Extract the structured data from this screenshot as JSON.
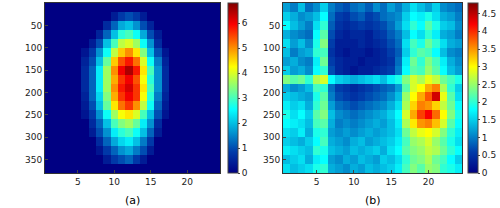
{
  "chart_data": [
    {
      "type": "heatmap",
      "label": "(a)",
      "x": [
        1,
        2,
        3,
        4,
        5,
        6,
        7,
        8,
        9,
        10,
        11,
        12,
        13,
        14,
        15,
        16,
        17,
        18,
        19,
        20,
        21,
        22,
        23,
        24
      ],
      "y": [
        10,
        30,
        50,
        70,
        90,
        110,
        130,
        150,
        170,
        190,
        210,
        230,
        250,
        270,
        290,
        310,
        330,
        350,
        370
      ],
      "xlim": [
        0.5,
        24.5
      ],
      "ylim": [
        0,
        380
      ],
      "xticks": [
        5,
        10,
        15,
        20
      ],
      "yticks": [
        50,
        100,
        150,
        200,
        250,
        300,
        350
      ],
      "zlim": [
        0,
        6.8
      ],
      "zticks": [
        0,
        1,
        2,
        3,
        4,
        5,
        6
      ],
      "grid": false,
      "cells": [
        [
          0,
          0,
          0,
          0,
          0,
          0,
          0,
          0,
          0,
          0,
          0,
          0,
          0,
          0,
          0,
          0,
          0,
          0,
          0,
          0,
          0,
          0,
          0,
          0
        ],
        [
          0,
          0,
          0,
          0,
          0,
          0,
          0,
          0,
          0,
          0.4,
          0.8,
          1,
          0.8,
          0.4,
          0,
          0,
          0,
          0,
          0,
          0,
          0,
          0,
          0,
          0
        ],
        [
          0,
          0,
          0,
          0,
          0,
          0,
          0,
          0,
          0.6,
          1.2,
          1.8,
          2,
          1.6,
          1,
          0.5,
          0,
          0,
          0,
          0,
          0,
          0,
          0,
          0,
          0
        ],
        [
          0,
          0,
          0,
          0,
          0,
          0,
          0,
          0.5,
          1.2,
          2,
          2.8,
          3,
          2.6,
          1.8,
          1,
          0.4,
          0,
          0,
          0,
          0,
          0,
          0,
          0,
          0
        ],
        [
          0,
          0,
          0,
          0,
          0,
          0,
          0.4,
          1,
          2,
          3,
          3.8,
          4,
          3.6,
          2.6,
          1.6,
          0.6,
          0,
          0,
          0,
          0,
          0,
          0,
          0,
          0
        ],
        [
          0,
          0,
          0,
          0,
          0,
          0.3,
          0.8,
          1.6,
          2.6,
          3.8,
          4.6,
          5,
          4.4,
          3.4,
          2,
          1,
          0.3,
          0,
          0,
          0,
          0,
          0,
          0,
          0
        ],
        [
          0,
          0,
          0,
          0,
          0,
          0.5,
          1,
          2,
          3.2,
          4.6,
          5.4,
          5.8,
          5.2,
          4,
          2.6,
          1.4,
          0.5,
          0,
          0,
          0,
          0,
          0,
          0,
          0
        ],
        [
          0,
          0,
          0,
          0,
          0,
          0.6,
          1.2,
          2.4,
          3.6,
          5,
          6,
          6.5,
          5.8,
          4.4,
          3,
          1.6,
          0.6,
          0,
          0,
          0,
          0,
          0,
          0,
          0
        ],
        [
          0,
          0,
          0,
          0,
          0,
          0.6,
          1.2,
          2.4,
          3.6,
          4.8,
          5.6,
          6,
          5.4,
          4.2,
          2.8,
          1.6,
          0.6,
          0,
          0,
          0,
          0,
          0,
          0,
          0
        ],
        [
          0,
          0,
          0,
          0,
          0,
          0.6,
          1.2,
          2.4,
          3.6,
          5,
          5.8,
          6.2,
          5.6,
          4.4,
          3,
          1.6,
          0.6,
          0,
          0,
          0,
          0,
          0,
          0,
          0
        ],
        [
          0,
          0,
          0,
          0,
          0,
          0.5,
          1.2,
          2.2,
          3.4,
          4.8,
          5.6,
          6,
          5.6,
          4.2,
          2.8,
          1.4,
          0.5,
          0,
          0,
          0,
          0,
          0,
          0,
          0
        ],
        [
          0,
          0,
          0,
          0,
          0,
          0.4,
          1,
          2,
          3.2,
          4.4,
          5.2,
          5.6,
          5,
          3.8,
          2.6,
          1.2,
          0.4,
          0,
          0,
          0,
          0,
          0,
          0,
          0
        ],
        [
          0,
          0,
          0,
          0,
          0,
          0.3,
          0.8,
          1.6,
          2.6,
          3.6,
          4.2,
          4.4,
          4,
          3,
          2,
          1,
          0.3,
          0,
          0,
          0,
          0,
          0,
          0,
          0
        ],
        [
          0,
          0,
          0,
          0,
          0,
          0,
          0.6,
          1.2,
          2,
          3,
          3.4,
          3.6,
          3.2,
          2.4,
          1.6,
          0.6,
          0,
          0,
          0,
          0,
          0,
          0,
          0,
          0
        ],
        [
          0,
          0,
          0,
          0,
          0,
          0,
          0.4,
          1,
          1.6,
          2.4,
          2.8,
          3,
          2.6,
          2,
          1.2,
          0.4,
          0,
          0,
          0,
          0,
          0,
          0,
          0,
          0
        ],
        [
          0,
          0,
          0,
          0,
          0,
          0,
          0,
          0.6,
          1.2,
          1.8,
          2.2,
          2.4,
          2,
          1.4,
          0.8,
          0,
          0,
          0,
          0,
          0,
          0,
          0,
          0,
          0
        ],
        [
          0,
          0,
          0,
          0,
          0,
          0,
          0,
          0.3,
          0.8,
          1.2,
          1.6,
          1.8,
          1.4,
          1,
          0.4,
          0,
          0,
          0,
          0,
          0,
          0,
          0,
          0,
          0
        ],
        [
          0,
          0,
          0,
          0,
          0,
          0,
          0,
          0,
          0.4,
          0.8,
          1,
          1.2,
          0.8,
          0.4,
          0,
          0,
          0,
          0,
          0,
          0,
          0,
          0,
          0,
          0
        ],
        [
          0,
          0,
          0,
          0,
          0,
          0,
          0,
          0,
          0,
          0,
          0,
          0,
          0,
          0,
          0,
          0,
          0,
          0,
          0,
          0,
          0,
          0,
          0,
          0
        ]
      ]
    },
    {
      "type": "heatmap",
      "label": "(b)",
      "x": [
        1,
        2,
        3,
        4,
        5,
        6,
        7,
        8,
        9,
        10,
        11,
        12,
        13,
        14,
        15,
        16,
        17,
        18,
        19,
        20,
        21,
        22,
        23,
        24
      ],
      "y": [
        10,
        30,
        50,
        70,
        90,
        110,
        130,
        150,
        170,
        190,
        210,
        230,
        250,
        270,
        290,
        310,
        330,
        350,
        370
      ],
      "xlim": [
        0.5,
        24.5
      ],
      "ylim": [
        0,
        380
      ],
      "xticks": [
        5,
        10,
        15,
        20
      ],
      "yticks": [
        50,
        100,
        150,
        200,
        250,
        300,
        350
      ],
      "zlim": [
        0,
        4.8
      ],
      "zticks": [
        0,
        0.5,
        1,
        1.5,
        2,
        2.5,
        3,
        3.5,
        4,
        4.5
      ],
      "grid": false,
      "cells": [
        [
          1.2,
          1.0,
          1.4,
          0.9,
          1.1,
          1.5,
          1.0,
          0.8,
          0.7,
          0.9,
          1.0,
          0.8,
          1.1,
          0.9,
          1.2,
          1.0,
          1.3,
          1.6,
          1.4,
          1.2,
          1.5,
          1.1,
          1.0,
          0.9
        ],
        [
          1.5,
          1.3,
          1.1,
          1.2,
          1.4,
          1.8,
          0.9,
          0.6,
          0.5,
          0.7,
          0.8,
          0.6,
          0.7,
          0.9,
          1.0,
          1.1,
          1.5,
          1.8,
          1.7,
          1.9,
          1.6,
          1.3,
          1.2,
          1.0
        ],
        [
          1.8,
          1.4,
          1.2,
          1.0,
          1.6,
          2.0,
          0.8,
          0.5,
          0.4,
          0.5,
          0.6,
          0.5,
          0.6,
          0.7,
          0.9,
          1.2,
          1.6,
          2.0,
          1.8,
          2.2,
          1.9,
          1.5,
          1.4,
          1.1
        ],
        [
          1.3,
          1.1,
          1.0,
          0.9,
          1.8,
          2.2,
          0.7,
          0.4,
          0.3,
          0.4,
          0.4,
          0.3,
          0.5,
          0.6,
          0.8,
          1.0,
          1.4,
          1.8,
          1.6,
          2.0,
          1.7,
          1.3,
          1.2,
          1.0
        ],
        [
          1.6,
          1.2,
          1.4,
          1.1,
          1.9,
          2.4,
          0.6,
          0.3,
          0.3,
          0.3,
          0.4,
          0.3,
          0.4,
          0.5,
          0.7,
          0.9,
          1.6,
          2.1,
          1.9,
          2.3,
          2.0,
          1.6,
          1.3,
          1.2
        ],
        [
          1.4,
          1.0,
          1.2,
          1.3,
          2.0,
          2.1,
          0.5,
          0.3,
          0.2,
          0.3,
          0.3,
          0.2,
          0.3,
          0.4,
          0.6,
          0.8,
          1.5,
          2.0,
          2.2,
          2.1,
          1.8,
          1.4,
          1.1,
          1.0
        ],
        [
          1.2,
          1.3,
          1.1,
          1.0,
          1.7,
          2.3,
          0.6,
          0.4,
          0.3,
          0.3,
          0.2,
          0.3,
          0.3,
          0.4,
          0.5,
          0.9,
          1.7,
          2.3,
          2.0,
          2.4,
          2.1,
          1.7,
          1.3,
          1.1
        ],
        [
          1.5,
          1.2,
          1.3,
          1.1,
          1.8,
          2.0,
          0.7,
          0.4,
          0.3,
          0.2,
          0.3,
          0.3,
          0.4,
          0.5,
          0.6,
          1.0,
          1.8,
          2.2,
          2.1,
          2.5,
          2.2,
          1.8,
          1.4,
          1.2
        ],
        [
          2.4,
          2.2,
          2.3,
          2.0,
          2.6,
          2.8,
          1.8,
          1.5,
          1.4,
          1.3,
          1.4,
          1.5,
          1.6,
          1.4,
          1.7,
          1.9,
          2.4,
          2.8,
          2.6,
          2.9,
          2.7,
          2.3,
          2.1,
          1.9
        ],
        [
          1.3,
          1.1,
          1.2,
          1.4,
          2.1,
          2.0,
          0.9,
          0.6,
          0.5,
          0.4,
          0.5,
          0.6,
          0.7,
          0.8,
          0.9,
          1.2,
          2.2,
          2.8,
          3.0,
          3.4,
          3.6,
          2.6,
          2.0,
          1.5
        ],
        [
          1.5,
          1.4,
          1.3,
          1.2,
          1.9,
          2.2,
          1.0,
          0.7,
          0.6,
          0.5,
          0.6,
          0.7,
          0.8,
          0.9,
          1.1,
          1.4,
          2.5,
          3.0,
          3.4,
          3.8,
          4.4,
          2.9,
          2.2,
          1.6
        ],
        [
          1.7,
          1.5,
          1.6,
          1.3,
          2.0,
          2.3,
          1.2,
          0.9,
          0.8,
          0.7,
          0.8,
          0.9,
          1.0,
          1.1,
          1.3,
          1.6,
          2.6,
          3.2,
          3.6,
          3.5,
          3.2,
          2.7,
          2.3,
          1.8
        ],
        [
          1.9,
          1.6,
          1.8,
          1.5,
          2.2,
          2.4,
          1.4,
          1.1,
          1.0,
          0.9,
          1.0,
          1.1,
          1.2,
          1.3,
          1.5,
          1.8,
          2.8,
          3.4,
          3.9,
          4.2,
          3.7,
          3.0,
          2.4,
          1.9
        ],
        [
          1.8,
          1.7,
          1.6,
          1.4,
          2.1,
          2.2,
          1.3,
          1.0,
          1.1,
          1.0,
          1.1,
          1.2,
          1.3,
          1.2,
          1.4,
          1.7,
          2.6,
          3.1,
          3.5,
          3.6,
          3.3,
          2.8,
          2.2,
          1.8
        ],
        [
          1.6,
          1.5,
          1.7,
          1.3,
          1.9,
          2.0,
          1.2,
          1.1,
          1.2,
          1.1,
          1.2,
          1.3,
          1.2,
          1.3,
          1.4,
          1.6,
          2.3,
          2.7,
          2.9,
          3.0,
          2.8,
          2.4,
          2.0,
          1.7
        ],
        [
          1.5,
          1.4,
          1.3,
          1.5,
          1.8,
          2.1,
          1.3,
          1.2,
          1.1,
          1.3,
          1.4,
          1.2,
          1.3,
          1.4,
          1.5,
          1.7,
          2.1,
          2.5,
          2.6,
          2.8,
          2.5,
          2.2,
          1.9,
          1.6
        ],
        [
          1.7,
          1.6,
          1.5,
          1.4,
          2.0,
          1.9,
          1.4,
          1.3,
          1.2,
          1.4,
          1.3,
          1.4,
          1.5,
          1.3,
          1.6,
          1.8,
          2.2,
          2.4,
          2.5,
          2.7,
          2.6,
          2.3,
          2.0,
          1.8
        ],
        [
          1.4,
          1.5,
          1.6,
          1.3,
          1.7,
          1.8,
          1.2,
          1.1,
          1.3,
          1.2,
          1.4,
          1.3,
          1.2,
          1.5,
          1.4,
          1.6,
          2.0,
          2.3,
          2.4,
          2.6,
          2.3,
          2.1,
          1.8,
          1.5
        ],
        [
          1.6,
          1.4,
          1.5,
          1.6,
          1.9,
          2.0,
          1.3,
          1.2,
          1.1,
          1.3,
          1.2,
          1.4,
          1.3,
          1.4,
          1.5,
          1.7,
          2.1,
          2.4,
          2.2,
          2.5,
          2.4,
          2.0,
          1.9,
          1.7
        ]
      ]
    }
  ]
}
